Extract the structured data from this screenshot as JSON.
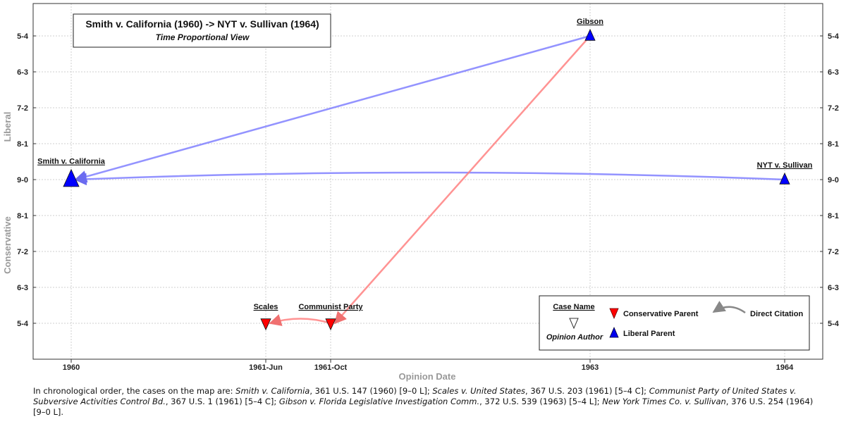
{
  "chart_data": {
    "type": "scatter",
    "title": "Smith v. California (1960) -> NYT v. Sullivan (1964)",
    "subtitle": "Time Proportional View",
    "xlabel": "Opinion Date",
    "ylabel_top": "Liberal",
    "ylabel_bottom": "Conservative",
    "x_ticks": [
      "1960",
      "1961-Jun",
      "1961-Oct",
      "1963",
      "1964"
    ],
    "y_ticks": [
      "5-4",
      "6-3",
      "7-2",
      "8-1",
      "9-0",
      "8-1",
      "7-2",
      "6-3",
      "5-4"
    ],
    "grid": true,
    "points": [
      {
        "name": "Smith v. California",
        "x": "1960",
        "vote": "9-0",
        "direction": "Liberal",
        "marker": "triangle-up",
        "color": "#0000ff",
        "size": "large"
      },
      {
        "name": "Scales",
        "x": "1961-Jun",
        "vote": "5-4",
        "direction": "Conservative",
        "marker": "triangle-down",
        "color": "#ff0000",
        "size": "normal"
      },
      {
        "name": "Communist Party",
        "x": "1961-Oct",
        "vote": "5-4",
        "direction": "Conservative",
        "marker": "triangle-down",
        "color": "#ff0000",
        "size": "normal"
      },
      {
        "name": "Gibson",
        "x": "1963",
        "vote": "5-4",
        "direction": "Liberal",
        "marker": "triangle-up",
        "color": "#0000ff",
        "size": "normal"
      },
      {
        "name": "NYT v. Sullivan",
        "x": "1964",
        "vote": "9-0",
        "direction": "Liberal",
        "marker": "triangle-up",
        "color": "#0000ff",
        "size": "normal"
      }
    ],
    "citations": [
      {
        "from": "Gibson",
        "to": "Smith v. California",
        "color": "#8080ff"
      },
      {
        "from": "NYT v. Sullivan",
        "to": "Smith v. California",
        "color": "#8080ff"
      },
      {
        "from": "Gibson",
        "to": "Communist Party",
        "color": "#ff8080"
      },
      {
        "from": "Communist Party",
        "to": "Scales",
        "color": "#ff8080"
      }
    ],
    "legend": {
      "position": "bottom-right",
      "case_name": "Case Name",
      "opinion_author": "Opinion Author",
      "conservative_parent": "Conservative Parent",
      "liberal_parent": "Liberal Parent",
      "direct_citation": "Direct Citation"
    }
  },
  "caption": {
    "intro": "In chronological order, the cases on the map are:",
    "cases": [
      {
        "name": "Smith v. California",
        "rest": ", 361 U.S. 147 (1960) [9–0 L];"
      },
      {
        "name": "Scales v. United States",
        "rest": ", 367 U.S. 203 (1961) [5–4 C];"
      },
      {
        "name": "Communist Party of United States v. Subversive Activities Control Bd.",
        "rest": ", 367 U.S. 1 (1961) [5–4 C];"
      },
      {
        "name": "Gibson v. Florida Legislative Investigation Comm.",
        "rest": ", 372 U.S. 539 (1963) [5–4 L];"
      },
      {
        "name": "New York Times Co. v. Sullivan",
        "rest": ", 376 U.S. 254 (1964) [9–0 L]."
      }
    ]
  }
}
